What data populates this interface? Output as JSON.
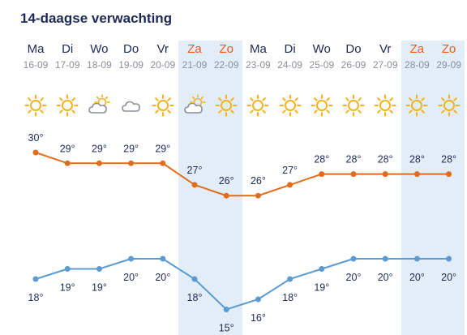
{
  "title": "14-daagse verwachting",
  "colors": {
    "max_line": "#e06c1c",
    "min_line": "#5a9bd3",
    "weekend_text": "#e8591a",
    "weekday_text": "#1d2a57",
    "weekend_bg": "#e2edf8",
    "sun": "#f5b21f",
    "cloud": "#8a8f99"
  },
  "days": [
    {
      "name": "Ma",
      "date": "16-09",
      "icon": "sun-icon",
      "weekend": false,
      "max": "30°",
      "min": "18°"
    },
    {
      "name": "Di",
      "date": "17-09",
      "icon": "sun-icon",
      "weekend": false,
      "max": "29°",
      "min": "19°"
    },
    {
      "name": "Wo",
      "date": "18-09",
      "icon": "partly-cloudy-icon",
      "weekend": false,
      "max": "29°",
      "min": "19°"
    },
    {
      "name": "Do",
      "date": "19-09",
      "icon": "cloud-icon",
      "weekend": false,
      "max": "29°",
      "min": "20°"
    },
    {
      "name": "Vr",
      "date": "20-09",
      "icon": "sun-icon",
      "weekend": false,
      "max": "29°",
      "min": "20°"
    },
    {
      "name": "Za",
      "date": "21-09",
      "icon": "partly-cloudy-icon",
      "weekend": true,
      "max": "27°",
      "min": "18°"
    },
    {
      "name": "Zo",
      "date": "22-09",
      "icon": "sun-icon",
      "weekend": true,
      "max": "26°",
      "min": "15°"
    },
    {
      "name": "Ma",
      "date": "23-09",
      "icon": "sun-icon",
      "weekend": false,
      "max": "26°",
      "min": "16°"
    },
    {
      "name": "Di",
      "date": "24-09",
      "icon": "sun-icon",
      "weekend": false,
      "max": "27°",
      "min": "18°"
    },
    {
      "name": "Wo",
      "date": "25-09",
      "icon": "sun-icon",
      "weekend": false,
      "max": "28°",
      "min": "19°"
    },
    {
      "name": "Do",
      "date": "26-09",
      "icon": "sun-icon",
      "weekend": false,
      "max": "28°",
      "min": "20°"
    },
    {
      "name": "Vr",
      "date": "27-09",
      "icon": "sun-icon",
      "weekend": false,
      "max": "28°",
      "min": "20°"
    },
    {
      "name": "Za",
      "date": "28-09",
      "icon": "sun-icon",
      "weekend": true,
      "max": "28°",
      "min": "20°"
    },
    {
      "name": "Zo",
      "date": "29-09",
      "icon": "sun-icon",
      "weekend": true,
      "max": "28°",
      "min": "20°"
    }
  ],
  "chart_data": {
    "type": "line",
    "categories": [
      "16-09",
      "17-09",
      "18-09",
      "19-09",
      "20-09",
      "21-09",
      "22-09",
      "23-09",
      "24-09",
      "25-09",
      "26-09",
      "27-09",
      "28-09",
      "29-09"
    ],
    "series": [
      {
        "values": [
          30,
          29,
          29,
          29,
          29,
          27,
          26,
          26,
          27,
          28,
          28,
          28,
          28,
          28
        ]
      },
      {
        "values": [
          18,
          19,
          19,
          20,
          20,
          18,
          15,
          16,
          18,
          19,
          20,
          20,
          20,
          20
        ]
      }
    ],
    "title": "",
    "xlabel": "",
    "ylabel": "",
    "grid": false
  }
}
